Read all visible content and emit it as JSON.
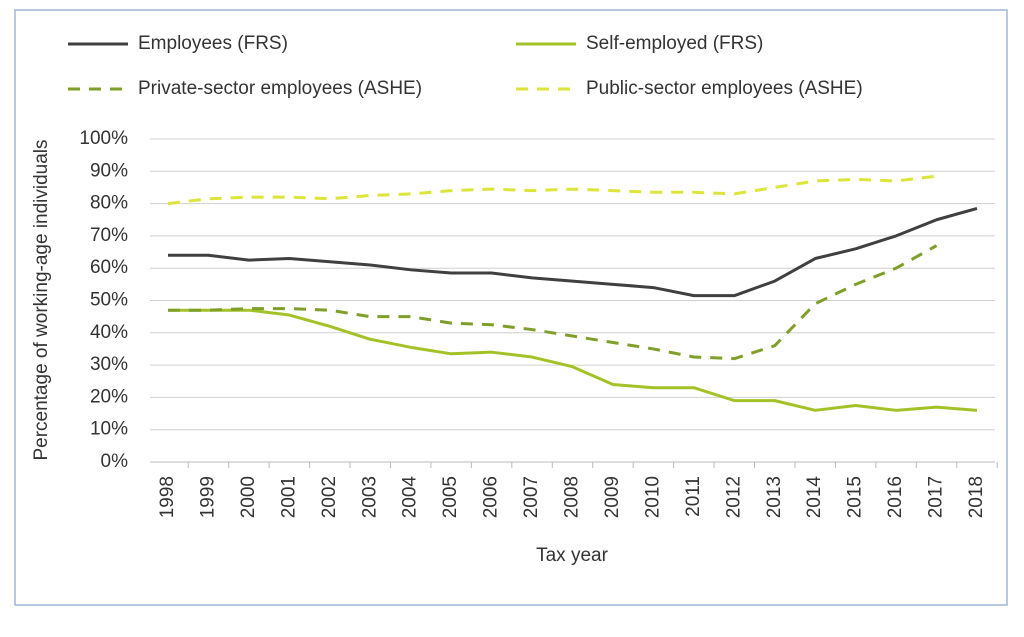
{
  "chart_data": {
    "type": "line",
    "xlabel": "Tax year",
    "ylabel": "Percentage of working-age individuals",
    "categories": [
      "1998",
      "1999",
      "2000",
      "2001",
      "2002",
      "2003",
      "2004",
      "2005",
      "2006",
      "2007",
      "2008",
      "2009",
      "2010",
      "2011",
      "2012",
      "2013",
      "2014",
      "2015",
      "2016",
      "2017",
      "2018"
    ],
    "series": [
      {
        "name": "Employees (FRS)",
        "color": "#404040",
        "style": "solid",
        "values": [
          64,
          64,
          62.5,
          63,
          62,
          61,
          59.5,
          58.5,
          58.5,
          57,
          56,
          55,
          54,
          51.5,
          51.5,
          56,
          63,
          66,
          70,
          75,
          78.5
        ]
      },
      {
        "name": "Self-employed (FRS)",
        "color": "#a3c228",
        "style": "solid",
        "values": [
          47,
          47,
          47,
          45.5,
          42,
          38,
          35.5,
          33.5,
          34,
          32.5,
          29.5,
          24,
          23,
          23,
          19,
          19,
          16,
          17.5,
          16,
          17,
          16
        ]
      },
      {
        "name": "Private-sector employees (ASHE)",
        "color": "#7f9f2a",
        "style": "dashed",
        "values": [
          47,
          47,
          47.5,
          47.5,
          47,
          45,
          45,
          43,
          42.5,
          41,
          39,
          37,
          35,
          32.5,
          32,
          36,
          49,
          55,
          60,
          67,
          null
        ]
      },
      {
        "name": "Public-sector employees (ASHE)",
        "color": "#dde53a",
        "style": "dashed",
        "values": [
          80,
          81.5,
          82,
          82,
          81.5,
          82.5,
          83,
          84,
          84.5,
          84,
          84.5,
          84,
          83.5,
          83.5,
          83,
          85,
          87,
          87.5,
          87,
          88.5,
          null
        ]
      }
    ],
    "ylim": [
      0,
      100
    ],
    "yticks": [
      {
        "value": 0,
        "label": "0%"
      },
      {
        "value": 10,
        "label": "10%"
      },
      {
        "value": 20,
        "label": "20%"
      },
      {
        "value": 30,
        "label": "30%"
      },
      {
        "value": 40,
        "label": "40%"
      },
      {
        "value": 50,
        "label": "50%"
      },
      {
        "value": 60,
        "label": "60%"
      },
      {
        "value": 70,
        "label": "70%"
      },
      {
        "value": 80,
        "label": "80%"
      },
      {
        "value": 90,
        "label": "90%"
      },
      {
        "value": 100,
        "label": "100%"
      }
    ],
    "grid": true
  }
}
